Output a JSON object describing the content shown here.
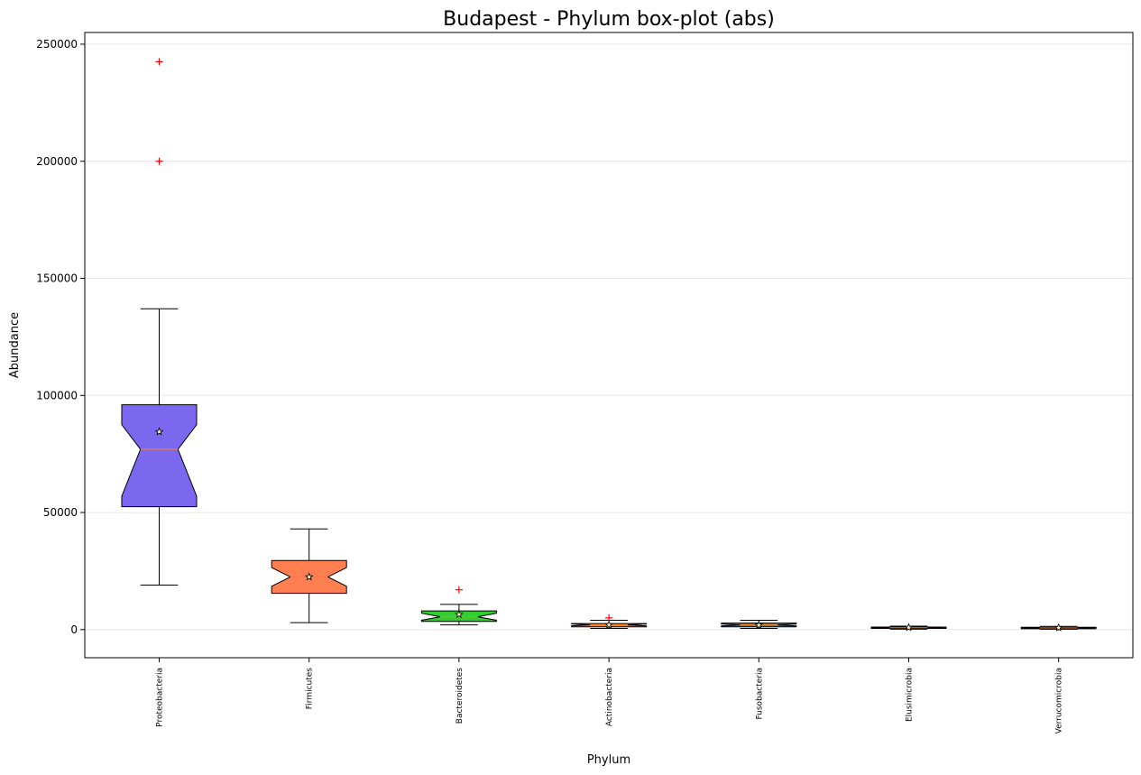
{
  "chart_data": {
    "type": "box",
    "title": "Budapest - Phylum box-plot (abs)",
    "xlabel": "Phylum",
    "ylabel": "Abundance",
    "ylim": [
      -12000,
      255000
    ],
    "yticks": [
      0,
      50000,
      100000,
      150000,
      200000,
      250000
    ],
    "grid": "horizontal",
    "notched": true,
    "mean_marker": "star",
    "outlier_marker": "+",
    "outlier_color": "#ff0000",
    "median_color": "#ff7f0e",
    "categories": [
      "Proteobacteria",
      "Firmicutes",
      "Bacteroidetes",
      "Actinobacteria",
      "Fusobacteria",
      "Elusimicrobia",
      "Verrucomicrobia"
    ],
    "boxes": [
      {
        "name": "Proteobacteria",
        "color": "#7b68ee",
        "whislo": 19000,
        "q1": 52500,
        "med": 77000,
        "q3": 96000,
        "whishi": 137000,
        "mean": 84500,
        "notch_lo": 57000,
        "notch_hi": 87500,
        "fliers": [
          200000,
          242500
        ]
      },
      {
        "name": "Firmicutes",
        "color": "#ff7f50",
        "whislo": 3000,
        "q1": 15500,
        "med": 22500,
        "q3": 29500,
        "whishi": 43000,
        "mean": 22500,
        "notch_lo": 18500,
        "notch_hi": 26500,
        "fliers": []
      },
      {
        "name": "Bacteroidetes",
        "color": "#32cd32",
        "whislo": 2000,
        "q1": 3500,
        "med": 5500,
        "q3": 8000,
        "whishi": 10800,
        "mean": 6500,
        "notch_lo": 4000,
        "notch_hi": 7000,
        "fliers": [
          17000
        ]
      },
      {
        "name": "Actinobacteria",
        "color": "#ff7f50",
        "whislo": 500,
        "q1": 1200,
        "med": 2000,
        "q3": 2600,
        "whishi": 4000,
        "mean": 2000,
        "notch_lo": 1600,
        "notch_hi": 2400,
        "fliers": [
          5000
        ]
      },
      {
        "name": "Fusobacteria",
        "color": "#4682b4",
        "whislo": 500,
        "q1": 1200,
        "med": 2000,
        "q3": 2800,
        "whishi": 4000,
        "mean": 1900,
        "notch_lo": 1600,
        "notch_hi": 2400,
        "fliers": []
      },
      {
        "name": "Elusimicrobia",
        "color": "#ff7f50",
        "whislo": 200,
        "q1": 500,
        "med": 800,
        "q3": 1100,
        "whishi": 1500,
        "mean": 900,
        "notch_lo": 650,
        "notch_hi": 950,
        "fliers": []
      },
      {
        "name": "Verrucomicrobia",
        "color": "#ff7f50",
        "whislo": 150,
        "q1": 400,
        "med": 700,
        "q3": 1000,
        "whishi": 1400,
        "mean": 800,
        "notch_lo": 550,
        "notch_hi": 850,
        "fliers": []
      }
    ]
  }
}
